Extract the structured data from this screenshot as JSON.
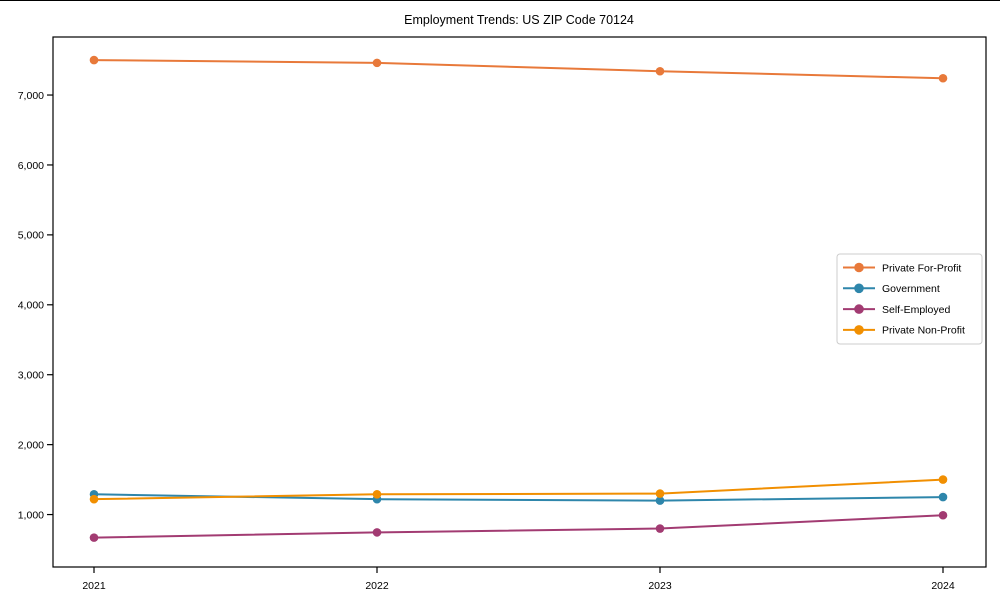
{
  "chart_data": {
    "type": "line",
    "title": "Employment Trends: US ZIP Code 70124",
    "x_categories": [
      "2021",
      "2022",
      "2023",
      "2024"
    ],
    "series": [
      {
        "name": "Private For-Profit",
        "color": "#E8793A",
        "values": [
          7500,
          7460,
          7340,
          7240
        ]
      },
      {
        "name": "Government",
        "color": "#2E86AB",
        "values": [
          1290,
          1220,
          1200,
          1250
        ]
      },
      {
        "name": "Self-Employed",
        "color": "#A23B72",
        "values": [
          670,
          745,
          800,
          990
        ]
      },
      {
        "name": "Private Non-Profit",
        "color": "#F18F01",
        "values": [
          1220,
          1290,
          1300,
          1500
        ]
      }
    ],
    "y_axis": {
      "ticks": [
        {
          "value": 1000,
          "label": "1,000"
        },
        {
          "value": 2000,
          "label": "2,000"
        },
        {
          "value": 3000,
          "label": "3,000"
        },
        {
          "value": 4000,
          "label": "4,000"
        },
        {
          "value": 5000,
          "label": "5,000"
        },
        {
          "value": 6000,
          "label": "6,000"
        },
        {
          "value": 7000,
          "label": "7,000"
        }
      ]
    },
    "ylim": [
      250,
      7830
    ],
    "grid": false,
    "legend_position": "center-right-inside",
    "colors": {
      "axis": "#000000",
      "legend_border": "#cccccc",
      "background": "#ffffff"
    }
  }
}
